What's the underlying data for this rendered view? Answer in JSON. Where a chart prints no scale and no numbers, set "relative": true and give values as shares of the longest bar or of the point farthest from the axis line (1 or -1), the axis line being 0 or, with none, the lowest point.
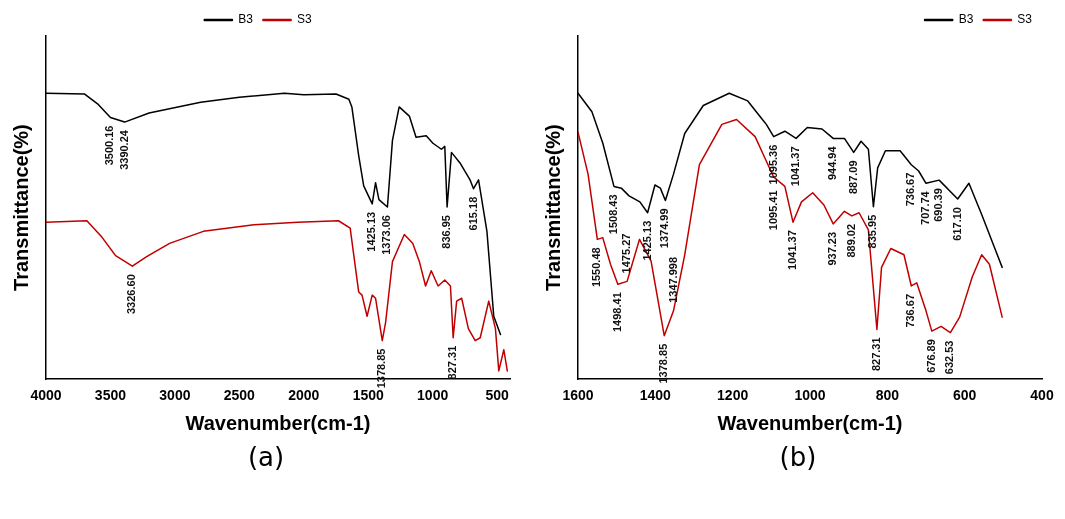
{
  "chart_data": [
    {
      "type": "line",
      "xlabel": "Wavenumber(cm-1)",
      "ylabel": "Transmittance(%)",
      "relative": true,
      "legend": "top",
      "marker": "none",
      "line_style": "solid",
      "grid": false,
      "xlim": [
        4000,
        400
      ],
      "xticks": [
        4000,
        3500,
        3000,
        2500,
        2000,
        1500,
        1000,
        500
      ],
      "series": [
        {
          "name": "B3",
          "color": "#000000",
          "x": [
            4000,
            3700,
            3600,
            3500,
            3390,
            3200,
            2800,
            2500,
            2150,
            2000,
            1750,
            1650,
            1627,
            1574,
            1535,
            1469,
            1443,
            1417,
            1351,
            1312,
            1260,
            1181,
            1129,
            1050,
            998,
            932,
            906,
            888,
            854,
            788,
            710,
            683,
            644,
            579,
            526,
            474
          ],
          "values": [
            1.0,
            0.997,
            0.963,
            0.915,
            0.899,
            0.931,
            0.968,
            0.986,
            1.0,
            0.995,
            0.997,
            0.979,
            0.952,
            0.782,
            0.676,
            0.613,
            0.687,
            0.628,
            0.602,
            0.835,
            0.952,
            0.92,
            0.846,
            0.851,
            0.825,
            0.804,
            0.814,
            0.602,
            0.793,
            0.756,
            0.697,
            0.666,
            0.697,
            0.517,
            0.22,
            0.156
          ]
        },
        {
          "name": "S3",
          "color": "#c00000",
          "x": [
            4000,
            3683,
            3565,
            3460,
            3330,
            3225,
            3041,
            2779,
            2386,
            2046,
            1731,
            1640,
            1574,
            1548,
            1509,
            1469,
            1443,
            1391,
            1365,
            1312,
            1220,
            1155,
            1103,
            1055,
            1011,
            958,
            906,
            862,
            841,
            814,
            775,
            723,
            670,
            631,
            565,
            513,
            487,
            448,
            421
          ],
          "values": [
            0.549,
            0.554,
            0.496,
            0.432,
            0.395,
            0.427,
            0.475,
            0.517,
            0.54,
            0.549,
            0.554,
            0.528,
            0.305,
            0.294,
            0.22,
            0.294,
            0.283,
            0.135,
            0.199,
            0.411,
            0.506,
            0.475,
            0.411,
            0.326,
            0.379,
            0.326,
            0.347,
            0.326,
            0.145,
            0.273,
            0.283,
            0.177,
            0.135,
            0.145,
            0.273,
            0.177,
            0.029,
            0.103,
            0.029
          ]
        }
      ],
      "annotations": [
        {
          "text": "3500.16",
          "x": 3500,
          "y": 0.915
        },
        {
          "text": "3390.24",
          "x": 3390,
          "y": 0.899
        },
        {
          "text": "1425.13",
          "x": 1469,
          "y": 0.613
        },
        {
          "text": "1373.06",
          "x": 1351,
          "y": 0.602
        },
        {
          "text": "836.95",
          "x": 888,
          "y": 0.602
        },
        {
          "text": "615.18",
          "x": 683,
          "y": 0.666
        },
        {
          "text": "3326.60",
          "x": 3330,
          "y": 0.395
        },
        {
          "text": "1378.85",
          "x": 1391,
          "y": 0.135
        },
        {
          "text": "827.31",
          "x": 841,
          "y": 0.145
        },
        "(a)"
      ]
    },
    {
      "type": "line",
      "xlabel": "Wavenumber(cm-1)",
      "ylabel": "Transmittance(%)",
      "relative": true,
      "legend": "top right",
      "marker": "none",
      "line_style": "solid",
      "grid": false,
      "xlim": [
        1600,
        400
      ],
      "xticks": [
        1600,
        1400,
        1200,
        1000,
        800,
        600,
        400
      ],
      "series": [
        {
          "name": "B3",
          "color": "#000000",
          "x": [
            1600,
            1564,
            1536,
            1507,
            1488,
            1468,
            1440,
            1420,
            1401,
            1387,
            1374,
            1353,
            1324,
            1276,
            1209,
            1161,
            1113,
            1094,
            1065,
            1036,
            1007,
            969,
            940,
            911,
            887,
            868,
            849,
            836,
            825,
            805,
            767,
            738,
            719,
            700,
            666,
            618,
            589,
            556,
            503
          ],
          "values": [
            1.0,
            0.935,
            0.826,
            0.674,
            0.668,
            0.641,
            0.62,
            0.582,
            0.679,
            0.668,
            0.625,
            0.717,
            0.859,
            0.957,
            1.0,
            0.973,
            0.891,
            0.848,
            0.867,
            0.842,
            0.88,
            0.875,
            0.842,
            0.842,
            0.793,
            0.832,
            0.804,
            0.603,
            0.739,
            0.799,
            0.799,
            0.75,
            0.728,
            0.685,
            0.696,
            0.63,
            0.685,
            0.576,
            0.391
          ]
        },
        {
          "name": "S3",
          "color": "#c00000",
          "x": [
            1600,
            1574,
            1550,
            1536,
            1516,
            1497,
            1473,
            1441,
            1411,
            1377,
            1353,
            1324,
            1286,
            1228,
            1190,
            1142,
            1094,
            1065,
            1044,
            1022,
            993,
            964,
            940,
            911,
            892,
            873,
            849,
            827,
            815,
            791,
            757,
            738,
            724,
            700,
            685,
            661,
            637,
            613,
            580,
            556,
            536,
            503
          ],
          "values": [
            0.864,
            0.717,
            0.489,
            0.495,
            0.402,
            0.332,
            0.342,
            0.489,
            0.413,
            0.152,
            0.239,
            0.435,
            0.75,
            0.891,
            0.908,
            0.848,
            0.707,
            0.674,
            0.549,
            0.62,
            0.652,
            0.609,
            0.543,
            0.587,
            0.571,
            0.582,
            0.522,
            0.174,
            0.391,
            0.457,
            0.435,
            0.326,
            0.337,
            0.239,
            0.168,
            0.185,
            0.163,
            0.217,
            0.359,
            0.435,
            0.402,
            0.217
          ]
        }
      ],
      "annotations": [
        {
          "text": "1508.43",
          "x": 1507,
          "y": 0.674
        },
        {
          "text": "1425.13",
          "x": 1420,
          "y": 0.582
        },
        {
          "text": "1374.99",
          "x": 1374,
          "y": 0.625
        },
        {
          "text": "1095.36",
          "x": 1094,
          "y": 0.848
        },
        {
          "text": "1041.37",
          "x": 1036,
          "y": 0.842
        },
        {
          "text": "944.94",
          "x": 940,
          "y": 0.842
        },
        {
          "text": "887.09",
          "x": 887,
          "y": 0.793
        },
        {
          "text": "835.95",
          "x": 836,
          "y": 0.603
        },
        {
          "text": "736.67",
          "x": 738,
          "y": 0.75
        },
        {
          "text": "707.74",
          "x": 700,
          "y": 0.685
        },
        {
          "text": "690.39",
          "x": 666,
          "y": 0.696
        },
        {
          "text": "617.10",
          "x": 618,
          "y": 0.63
        },
        {
          "text": "1550.48",
          "x": 1550,
          "y": 0.489
        },
        {
          "text": "1498.41",
          "x": 1497,
          "y": 0.332
        },
        {
          "text": "1475.27",
          "x": 1473,
          "y": 0.342
        },
        {
          "text": "1378.85",
          "x": 1377,
          "y": 0.152
        },
        {
          "text": "1347.998",
          "x": 1353,
          "y": 0.239
        },
        {
          "text": "1095.41",
          "x": 1094,
          "y": 0.707
        },
        {
          "text": "1041.37",
          "x": 1044,
          "y": 0.549
        },
        {
          "text": "937.23",
          "x": 940,
          "y": 0.543
        },
        {
          "text": "889.02",
          "x": 892,
          "y": 0.571
        },
        {
          "text": "827.31",
          "x": 827,
          "y": 0.174
        },
        {
          "text": "736.67",
          "x": 738,
          "y": 0.326
        },
        {
          "text": "676.89",
          "x": 685,
          "y": 0.168
        },
        {
          "text": "632.53",
          "x": 637,
          "y": 0.163
        },
        "(b)"
      ]
    }
  ]
}
